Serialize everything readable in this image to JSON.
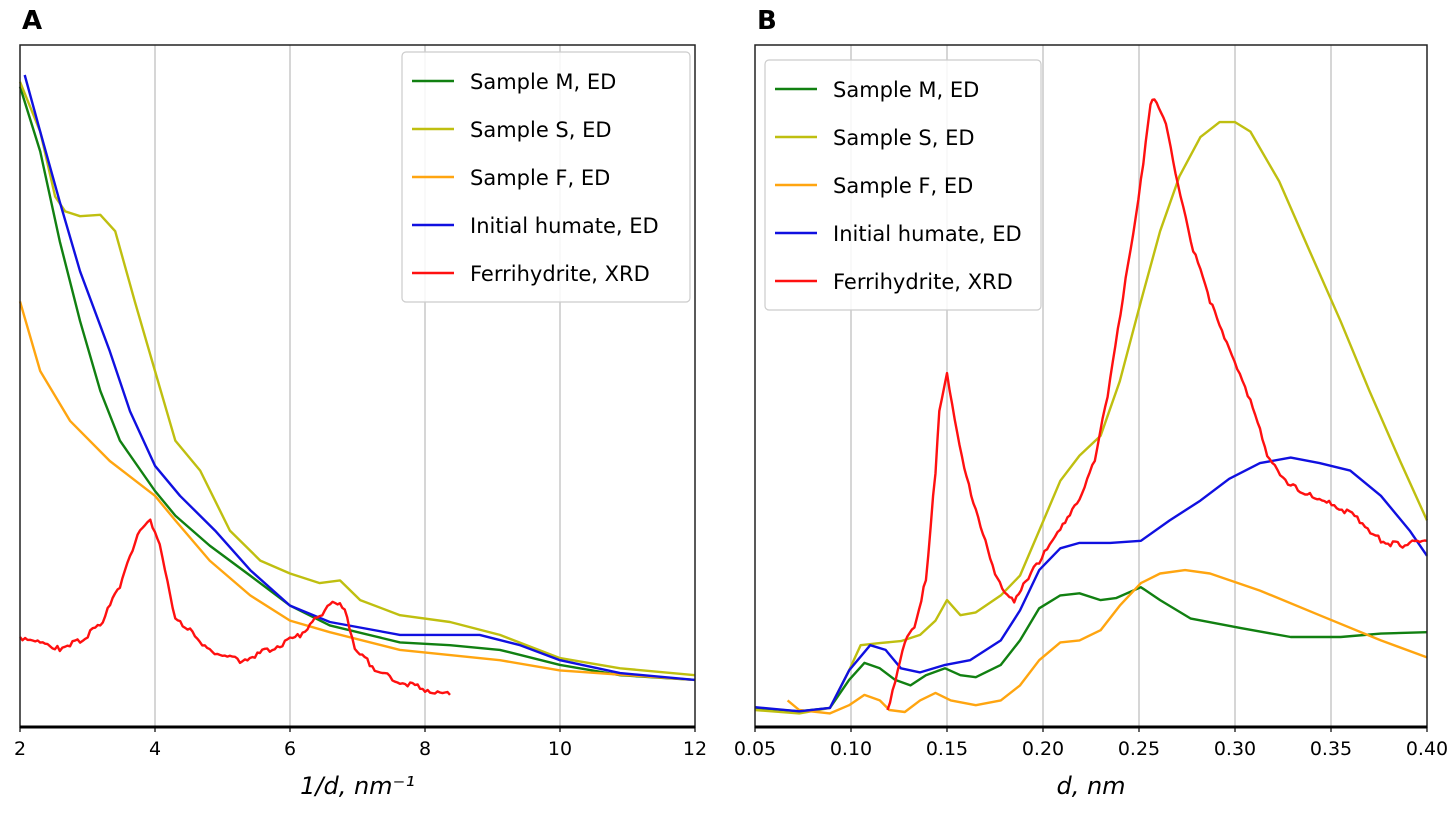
{
  "chart_data": [
    {
      "panel_label": "A",
      "type": "line",
      "xlabel": "1/d, nm⁻¹",
      "ylabel": "",
      "xlim": [
        2,
        12
      ],
      "ylim": [
        0,
        100
      ],
      "xticks": [
        "2",
        "4",
        "6",
        "8",
        "10",
        "12"
      ],
      "xtick_values": [
        2,
        4,
        6,
        8,
        10,
        12
      ],
      "grid": "vertical",
      "legend_position": "top-right",
      "series": [
        {
          "name": "Sample M, ED",
          "color": "#118011",
          "x": [
            2.0,
            2.3,
            2.59,
            2.89,
            3.19,
            3.48,
            4.0,
            4.3,
            4.81,
            5.41,
            6.0,
            6.59,
            7.63,
            8.37,
            9.11,
            10.0,
            10.89,
            12.0
          ],
          "y": [
            93.9,
            84.4,
            71.2,
            59.5,
            49.3,
            42.0,
            34.6,
            31.0,
            26.6,
            22.2,
            17.8,
            14.9,
            12.4,
            12.0,
            11.3,
            9.1,
            7.6,
            6.9
          ]
        },
        {
          "name": "Sample S, ED",
          "color": "#bfbf10",
          "x": [
            2.0,
            2.3,
            2.52,
            2.67,
            2.89,
            3.19,
            3.41,
            3.7,
            4.0,
            4.3,
            4.67,
            5.11,
            5.56,
            6.0,
            6.44,
            6.74,
            7.04,
            7.63,
            8.37,
            9.11,
            10.0,
            10.89,
            12.0
          ],
          "y": [
            94.6,
            87.3,
            77.8,
            75.6,
            74.9,
            75.1,
            72.7,
            62.4,
            52.2,
            42.0,
            37.6,
            28.8,
            24.4,
            22.5,
            21.1,
            21.5,
            18.6,
            16.4,
            15.4,
            13.5,
            10.1,
            8.6,
            7.6
          ]
        },
        {
          "name": "Sample F, ED",
          "color": "#ffa510",
          "x": [
            2.0,
            2.3,
            2.74,
            3.33,
            4.0,
            4.3,
            4.81,
            5.41,
            6.0,
            6.59,
            7.63,
            9.11,
            10.0,
            12.0
          ],
          "y": [
            62.4,
            52.2,
            44.9,
            39.0,
            33.9,
            30.3,
            24.4,
            19.3,
            15.6,
            13.9,
            11.3,
            9.8,
            8.3,
            6.9
          ]
        },
        {
          "name": "Initial humate, ED",
          "color": "#1010e0",
          "x": [
            2.07,
            2.3,
            2.59,
            2.89,
            3.33,
            3.63,
            4.0,
            4.37,
            4.89,
            5.41,
            6.0,
            6.59,
            7.63,
            8.81,
            9.41,
            10.0,
            10.89,
            12.0
          ],
          "y": [
            95.6,
            87.3,
            77.0,
            66.8,
            55.1,
            46.3,
            38.3,
            33.9,
            28.8,
            23.0,
            17.8,
            15.4,
            13.5,
            13.5,
            12.0,
            9.8,
            7.9,
            6.9
          ]
        },
        {
          "name": "Ferrihydrite, XRD",
          "color": "#ff1010",
          "noisy": true,
          "x": [
            2.0,
            2.3,
            2.59,
            2.89,
            3.19,
            3.48,
            3.78,
            3.93,
            4.07,
            4.3,
            4.52,
            4.81,
            5.26,
            5.7,
            6.15,
            6.44,
            6.67,
            6.81,
            6.96,
            7.33,
            7.78,
            8.37
          ],
          "y": [
            13.2,
            12.7,
            11.5,
            12.7,
            14.9,
            20.8,
            28.8,
            30.0,
            26.6,
            15.6,
            14.2,
            11.3,
            9.8,
            11.3,
            13.5,
            16.4,
            18.6,
            17.1,
            11.3,
            8.0,
            6.1,
            4.7
          ]
        }
      ]
    },
    {
      "panel_label": "B",
      "type": "line",
      "xlabel": "d, nm",
      "ylabel": "",
      "xlim": [
        0.05,
        0.4
      ],
      "ylim": [
        0,
        100
      ],
      "xticks": [
        "0.05",
        "0.10",
        "0.15",
        "0.20",
        "0.25",
        "0.30",
        "0.35",
        "0.40"
      ],
      "xtick_values": [
        0.05,
        0.1,
        0.15,
        0.2,
        0.25,
        0.3,
        0.35,
        0.4
      ],
      "grid": "vertical",
      "legend_position": "top-left",
      "series": [
        {
          "name": "Sample M, ED",
          "color": "#118011",
          "x": [
            0.05,
            0.073,
            0.089,
            0.099,
            0.107,
            0.115,
            0.123,
            0.131,
            0.139,
            0.149,
            0.157,
            0.165,
            0.178,
            0.188,
            0.198,
            0.209,
            0.219,
            0.23,
            0.238,
            0.251,
            0.261,
            0.277,
            0.303,
            0.329,
            0.355,
            0.376,
            0.4
          ],
          "y": [
            2.8,
            2.3,
            2.8,
            6.9,
            9.4,
            8.6,
            6.9,
            6.1,
            7.6,
            8.6,
            7.6,
            7.3,
            9.1,
            12.7,
            17.4,
            19.3,
            19.6,
            18.6,
            18.9,
            20.5,
            18.6,
            15.9,
            14.5,
            13.2,
            13.2,
            13.7,
            13.9
          ]
        },
        {
          "name": "Sample S, ED",
          "color": "#bfbf10",
          "x": [
            0.05,
            0.073,
            0.089,
            0.099,
            0.105,
            0.115,
            0.126,
            0.136,
            0.144,
            0.15,
            0.157,
            0.165,
            0.178,
            0.188,
            0.198,
            0.209,
            0.219,
            0.23,
            0.24,
            0.251,
            0.261,
            0.271,
            0.282,
            0.292,
            0.3,
            0.308,
            0.323,
            0.339,
            0.355,
            0.37,
            0.386,
            0.4
          ],
          "y": [
            2.5,
            2.0,
            2.8,
            8.3,
            12.0,
            12.3,
            12.6,
            13.5,
            15.6,
            18.6,
            16.4,
            16.8,
            19.3,
            22.2,
            28.8,
            36.1,
            39.8,
            42.7,
            50.7,
            62.4,
            72.7,
            80.7,
            86.5,
            88.7,
            88.7,
            87.3,
            80.0,
            69.7,
            59.5,
            49.3,
            39.0,
            30.3
          ]
        },
        {
          "name": "Sample F, ED",
          "color": "#ffa510",
          "x": [
            0.067,
            0.073,
            0.089,
            0.099,
            0.107,
            0.115,
            0.12,
            0.128,
            0.136,
            0.144,
            0.152,
            0.165,
            0.178,
            0.188,
            0.198,
            0.209,
            0.219,
            0.23,
            0.24,
            0.251,
            0.261,
            0.274,
            0.287,
            0.313,
            0.344,
            0.376,
            0.4
          ],
          "y": [
            3.9,
            2.5,
            2.0,
            3.2,
            4.7,
            3.9,
            2.5,
            2.2,
            3.9,
            5.0,
            3.9,
            3.2,
            3.9,
            6.1,
            9.8,
            12.4,
            12.7,
            14.2,
            17.8,
            21.1,
            22.5,
            23.0,
            22.5,
            20.0,
            16.4,
            12.7,
            10.2
          ]
        },
        {
          "name": "Initial humate, ED",
          "color": "#1010e0",
          "x": [
            0.05,
            0.073,
            0.089,
            0.099,
            0.11,
            0.118,
            0.126,
            0.136,
            0.149,
            0.162,
            0.178,
            0.188,
            0.198,
            0.209,
            0.219,
            0.235,
            0.251,
            0.266,
            0.282,
            0.297,
            0.313,
            0.329,
            0.344,
            0.36,
            0.376,
            0.391,
            0.4
          ],
          "y": [
            2.9,
            2.3,
            2.8,
            8.3,
            12.0,
            11.3,
            8.6,
            8.0,
            9.1,
            9.8,
            12.7,
            17.1,
            23.0,
            26.2,
            27.0,
            27.0,
            27.3,
            30.3,
            33.2,
            36.4,
            38.7,
            39.5,
            38.7,
            37.6,
            33.9,
            28.8,
            25.1
          ]
        },
        {
          "name": "Ferrihydrite, XRD",
          "color": "#ff1010",
          "noisy": true,
          "x": [
            0.119,
            0.123,
            0.128,
            0.133,
            0.139,
            0.144,
            0.146,
            0.15,
            0.154,
            0.159,
            0.165,
            0.17,
            0.175,
            0.18,
            0.185,
            0.191,
            0.198,
            0.209,
            0.219,
            0.227,
            0.235,
            0.243,
            0.251,
            0.256,
            0.258,
            0.264,
            0.269,
            0.277,
            0.287,
            0.297,
            0.308,
            0.318,
            0.329,
            0.339,
            0.349,
            0.365,
            0.376,
            0.386,
            0.4
          ],
          "y": [
            2.5,
            6.9,
            12.7,
            14.9,
            21.5,
            37.6,
            46.3,
            51.5,
            44.9,
            37.6,
            31.7,
            27.3,
            22.8,
            20.0,
            18.6,
            21.5,
            24.4,
            28.8,
            33.2,
            39.0,
            50.7,
            65.4,
            80.0,
            91.7,
            92.4,
            88.7,
            81.4,
            71.2,
            62.4,
            55.1,
            47.8,
            39.0,
            35.4,
            33.9,
            33.2,
            30.3,
            27.3,
            26.6,
            27.3
          ]
        }
      ]
    }
  ]
}
